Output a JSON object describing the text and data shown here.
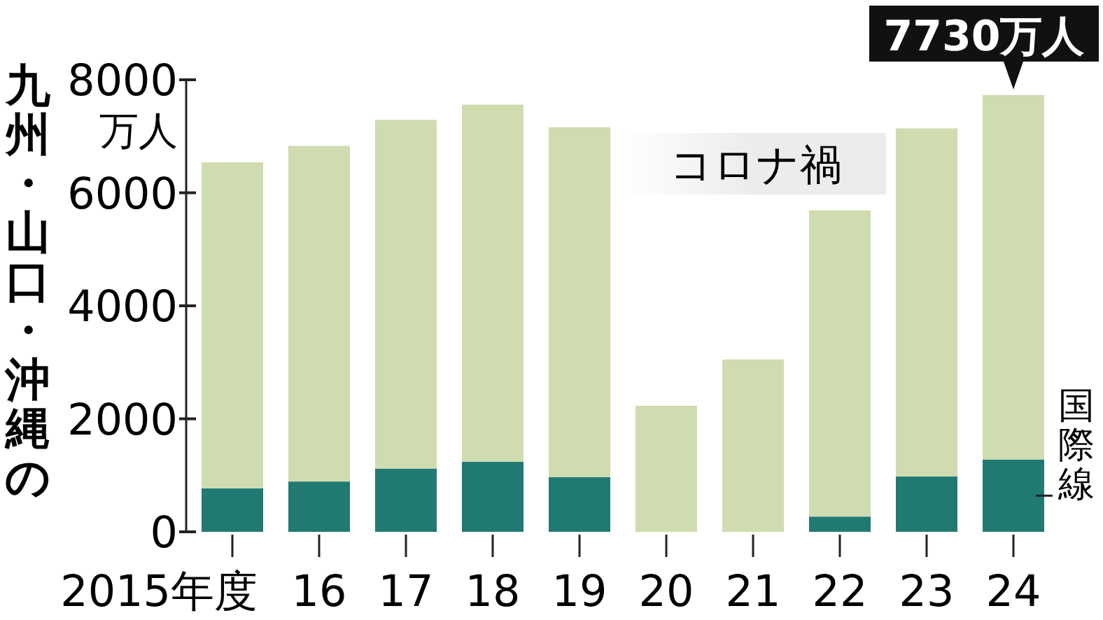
{
  "chart_data": {
    "type": "bar",
    "title": "九州・山口・沖縄の",
    "ylabel": "万人",
    "stacked": true,
    "grid": false,
    "categories": [
      "2015年度",
      "16",
      "17",
      "18",
      "19",
      "20",
      "21",
      "22",
      "23",
      "24"
    ],
    "series": [
      {
        "name": "国際線",
        "color": "#217a72",
        "values": [
          770,
          890,
          1120,
          1240,
          970,
          0,
          0,
          270,
          980,
          1280
        ]
      },
      {
        "color": "#cfdcb0",
        "values": [
          5770,
          5940,
          6170,
          6320,
          6190,
          2230,
          3050,
          5420,
          6160,
          6450
        ]
      }
    ],
    "ylim": [
      0,
      8000
    ],
    "yticks": [
      0,
      2000,
      4000,
      6000,
      8000
    ],
    "annotations": [
      "コロナ禍",
      {
        "text": "7730万人",
        "x": "24",
        "y": 7730
      }
    ]
  }
}
